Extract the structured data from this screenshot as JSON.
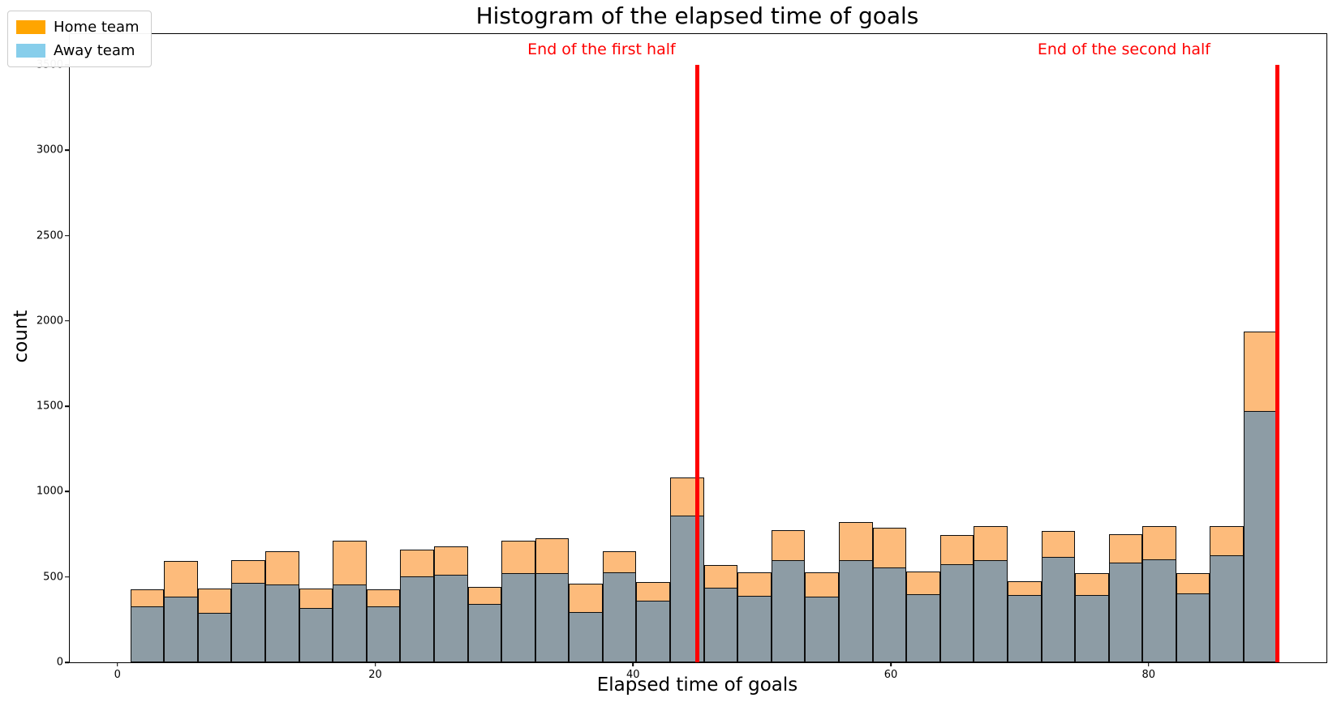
{
  "figure": {
    "title": "Histogram of the elapsed time of goals",
    "x_axis_label": "Elapsed time of goals",
    "y_axis_label": "count"
  },
  "legend": {
    "items": [
      {
        "label": "Home team",
        "color": "#FFA500"
      },
      {
        "label": "Away team",
        "color": "#87CEEB"
      }
    ]
  },
  "chart_data": {
    "type": "bar",
    "subtype": "overlaid-histogram",
    "title": "Histogram of the elapsed time of goals",
    "xlabel": "Elapsed time of goals",
    "ylabel": "count",
    "bin_start": 1,
    "bin_end": 90,
    "bin_count": 34,
    "x_ticks": [
      "0",
      "20",
      "40",
      "60",
      "80"
    ],
    "x_tick_values": [
      0,
      20,
      40,
      60,
      80
    ],
    "y_ticks": [
      "0",
      "500",
      "1000",
      "1500",
      "2000",
      "2500",
      "3000",
      "3500"
    ],
    "y_tick_values": [
      0,
      500,
      1000,
      1500,
      2000,
      2500,
      3000,
      3500
    ],
    "xlim": [
      -3.7,
      93.8
    ],
    "ylim": [
      0,
      3680
    ],
    "grid": false,
    "legend_position": "upper-left",
    "bar_edge_color": "#0d0d0d",
    "series": [
      {
        "name": "Home team",
        "legend_color": "#FFA500",
        "bar_fill": "#FDBB7B",
        "values": [
          425,
          595,
          430,
          600,
          650,
          430,
          710,
          425,
          660,
          680,
          440,
          710,
          725,
          460,
          650,
          470,
          1085,
          570,
          525,
          775,
          525,
          820,
          790,
          530,
          745,
          800,
          475,
          770,
          520,
          750,
          800,
          520,
          800,
          1935
        ]
      },
      {
        "name": "Away team",
        "legend_color": "#87CEEB",
        "bar_fill": "#8D9CA5",
        "values": [
          330,
          385,
          290,
          465,
          455,
          320,
          455,
          330,
          505,
          515,
          340,
          520,
          520,
          295,
          525,
          360,
          860,
          435,
          390,
          600,
          385,
          600,
          555,
          400,
          575,
          600,
          395,
          615,
          395,
          585,
          605,
          405,
          625,
          1470
        ]
      }
    ],
    "vlines": [
      {
        "x": 45,
        "y_top": 3500,
        "color": "#FF0000",
        "label": "End of the first half",
        "label_anchor_x": 43.3,
        "label_y": 3640
      },
      {
        "x": 90,
        "y_top": 3500,
        "color": "#FF0000",
        "label": "End of the second half",
        "label_anchor_x": 84.8,
        "label_y": 3640
      }
    ]
  }
}
